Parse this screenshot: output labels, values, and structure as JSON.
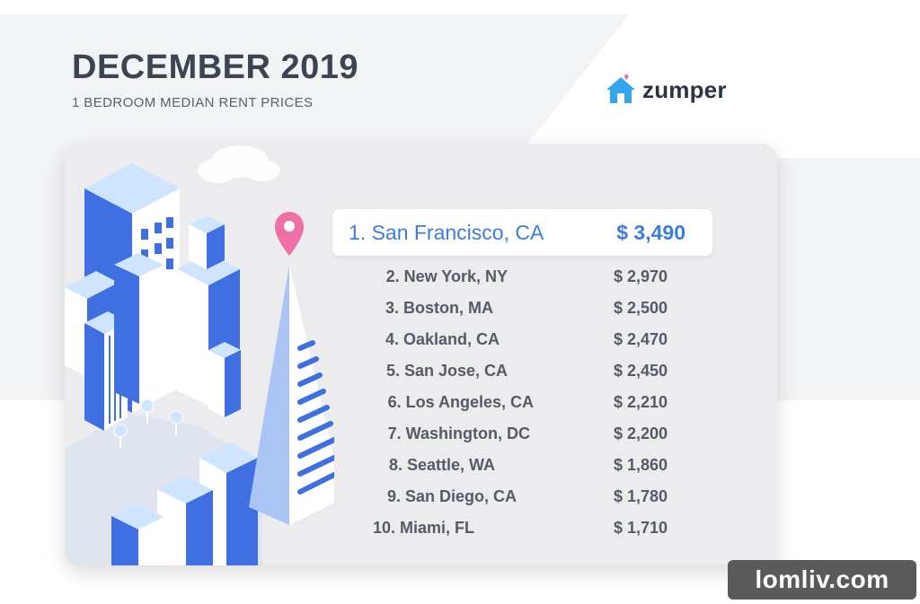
{
  "header": {
    "title": "DECEMBER 2019",
    "subtitle": "1 BEDROOM MEDIAN RENT PRICES",
    "logo_text": "zumper"
  },
  "rankings": [
    {
      "rank_city": "1. San Francisco, CA",
      "price": "$ 3,490"
    },
    {
      "rank_city": "2. New York, NY",
      "price": "$ 2,970"
    },
    {
      "rank_city": "3. Boston, MA",
      "price": "$ 2,500"
    },
    {
      "rank_city": "4. Oakland, CA",
      "price": "$ 2,470"
    },
    {
      "rank_city": "5. San Jose, CA",
      "price": "$ 2,450"
    },
    {
      "rank_city": "6. Los Angeles, CA",
      "price": "$ 2,210"
    },
    {
      "rank_city": "7. Washington, DC",
      "price": "$ 2,200"
    },
    {
      "rank_city": "8. Seattle, WA",
      "price": "$ 1,860"
    },
    {
      "rank_city": "9. San Diego, CA",
      "price": "$ 1,780"
    },
    {
      "rank_city": "10. Miami, FL",
      "price": "$ 1,710"
    }
  ],
  "watermark": "lomliv.com",
  "colors": {
    "accent_blue": "#3b7ddd",
    "building_blue": "#3f6fe0",
    "pin_pink": "#ef6fa7",
    "text_dark": "#3c4452",
    "logo_house": "#34a7ec"
  }
}
